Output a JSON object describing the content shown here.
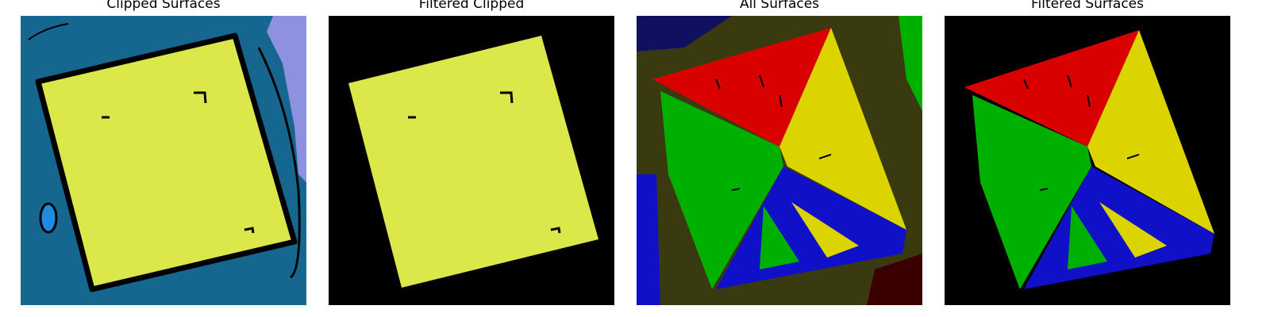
{
  "panels": [
    {
      "title": "Clipped Surfaces"
    },
    {
      "title": "Filtered Clipped"
    },
    {
      "title": "All Surfaces"
    },
    {
      "title": "Filtered Surfaces"
    }
  ],
  "colors": {
    "background_black": "#000000",
    "teal": "#15678f",
    "lavender": "#8e91e0",
    "light_blue": "#1f8be0",
    "yellow_green": "#dce84a",
    "red": "#d90000",
    "yellow": "#dcd400",
    "green": "#00b000",
    "blue": "#1010c8",
    "olive": "#3a3a10",
    "dark_red": "#3a0000",
    "dark_blue": "#101060"
  }
}
